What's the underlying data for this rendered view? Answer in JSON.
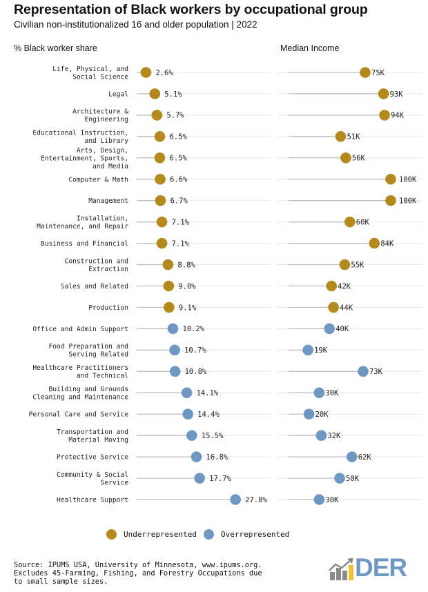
{
  "header": {
    "title": "Representation of Black workers by occupational group",
    "subtitle": "Civilian non-institutionalized 16 and older population | 2022",
    "left_panel_label": "% Black worker share",
    "right_panel_label": "Median Income"
  },
  "legend": {
    "items": [
      {
        "label": "Underrepresented",
        "color": "#b48a1c"
      },
      {
        "label": "Overrepresented",
        "color": "#6e98c2"
      }
    ]
  },
  "footer": {
    "source": "Source: IPUMS USA, University of Minnesota, www.ipums.org.\nExcludes 45-Farming, Fishing, and Forestry Occupations due\nto small sample sizes.",
    "logo_text": "DER"
  },
  "chart_data": [
    {
      "type": "scatter",
      "title": "% Black worker share",
      "xlabel": "",
      "ylabel": "",
      "value_unit": "%",
      "xlim": [
        0,
        30
      ],
      "grid": false,
      "legend_position": "bottom-center",
      "categories": [
        [
          "Life, Physical, and",
          "Social Science"
        ],
        [
          "Legal"
        ],
        [
          "Architecture &",
          "Engineering"
        ],
        [
          "Educational Instruction,",
          "and Library"
        ],
        [
          "Arts, Design,",
          "Entertainment, Sports,",
          "and Media"
        ],
        [
          "Computer & Math"
        ],
        [
          "Management"
        ],
        [
          "Installation,",
          "Maintenance, and Repair"
        ],
        [
          "Business and Financial"
        ],
        [
          "Construction and",
          "Extraction"
        ],
        [
          "Sales and Related"
        ],
        [
          "Production"
        ],
        [
          "Office and Admin Support"
        ],
        [
          "Food Preparation and",
          "Serving Related"
        ],
        [
          "Healthcare Practitioners",
          "and Technical"
        ],
        [
          "Building and Grounds",
          "Cleaning and Maintenance"
        ],
        [
          "Personal Care and Service"
        ],
        [
          "Transportation and",
          "Material Moving"
        ],
        [
          "Protective Service"
        ],
        [
          "Community & Social",
          "Service"
        ],
        [
          "Healthcare Support"
        ]
      ],
      "values": [
        2.6,
        5.1,
        5.7,
        6.5,
        6.5,
        6.6,
        6.7,
        7.1,
        7.1,
        8.8,
        9.0,
        9.1,
        10.2,
        10.7,
        10.8,
        14.1,
        14.4,
        15.5,
        16.8,
        17.7,
        27.8
      ],
      "labels": [
        "2.6%",
        "5.1%",
        "5.7%",
        "6.5%",
        "6.5%",
        "6.6%",
        "6.7%",
        "7.1%",
        "7.1%",
        "8.8%",
        "9.0%",
        "9.1%",
        "10.2%",
        "10.7%",
        "10.8%",
        "14.1%",
        "14.4%",
        "15.5%",
        "16.8%",
        "17.7%",
        "27.8%"
      ],
      "group": [
        "Underrepresented",
        "Underrepresented",
        "Underrepresented",
        "Underrepresented",
        "Underrepresented",
        "Underrepresented",
        "Underrepresented",
        "Underrepresented",
        "Underrepresented",
        "Underrepresented",
        "Underrepresented",
        "Underrepresented",
        "Overrepresented",
        "Overrepresented",
        "Overrepresented",
        "Overrepresented",
        "Overrepresented",
        "Overrepresented",
        "Overrepresented",
        "Overrepresented",
        "Overrepresented"
      ]
    },
    {
      "type": "scatter",
      "title": "Median Income",
      "xlabel": "",
      "ylabel": "",
      "value_unit": "thousand USD",
      "xlim": [
        0,
        110
      ],
      "grid": false,
      "values": [
        75,
        93,
        94,
        51,
        56,
        100,
        100,
        60,
        84,
        55,
        42,
        44,
        40,
        19,
        73,
        30,
        20,
        32,
        62,
        50,
        30
      ],
      "labels": [
        "75K",
        "93K",
        "94K",
        "51K",
        "56K",
        "100K",
        "100K",
        "60K",
        "84K",
        "55K",
        "42K",
        "44K",
        "40K",
        "19K",
        "73K",
        "30K",
        "20K",
        "32K",
        "62K",
        "50K",
        "30K"
      ]
    }
  ]
}
